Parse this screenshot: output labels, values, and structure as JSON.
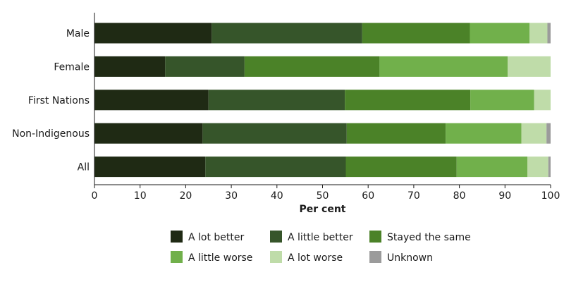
{
  "chart_data": {
    "type": "bar",
    "orientation": "horizontal",
    "stacked": true,
    "categories": [
      "Male",
      "Female",
      "First Nations",
      "Non-Indigenous",
      "All"
    ],
    "series": [
      {
        "name": "A lot better",
        "color": "#1f2a14",
        "values": [
          25.7,
          15.5,
          25.0,
          23.7,
          24.3
        ]
      },
      {
        "name": "A little better",
        "color": "#36552a",
        "values": [
          33.0,
          17.4,
          29.9,
          31.6,
          30.8
        ]
      },
      {
        "name": "Stayed the same",
        "color": "#4b8228",
        "values": [
          23.6,
          29.6,
          27.5,
          21.7,
          24.3
        ]
      },
      {
        "name": "A little worse",
        "color": "#71b04b",
        "values": [
          13.1,
          28.1,
          14.0,
          16.6,
          15.5
        ]
      },
      {
        "name": "A lot worse",
        "color": "#bfdca9",
        "values": [
          3.9,
          9.4,
          3.6,
          5.5,
          4.6
        ]
      },
      {
        "name": "Unknown",
        "color": "#9b9b9b",
        "values": [
          0.7,
          0.0,
          0.0,
          0.9,
          0.5
        ]
      }
    ],
    "xlabel": "Per cent",
    "ylabel": "",
    "xlim": [
      0,
      100
    ],
    "x_ticks": [
      0,
      10,
      20,
      30,
      40,
      50,
      60,
      70,
      80,
      90,
      100
    ],
    "grid": false,
    "legend_position": "bottom"
  }
}
